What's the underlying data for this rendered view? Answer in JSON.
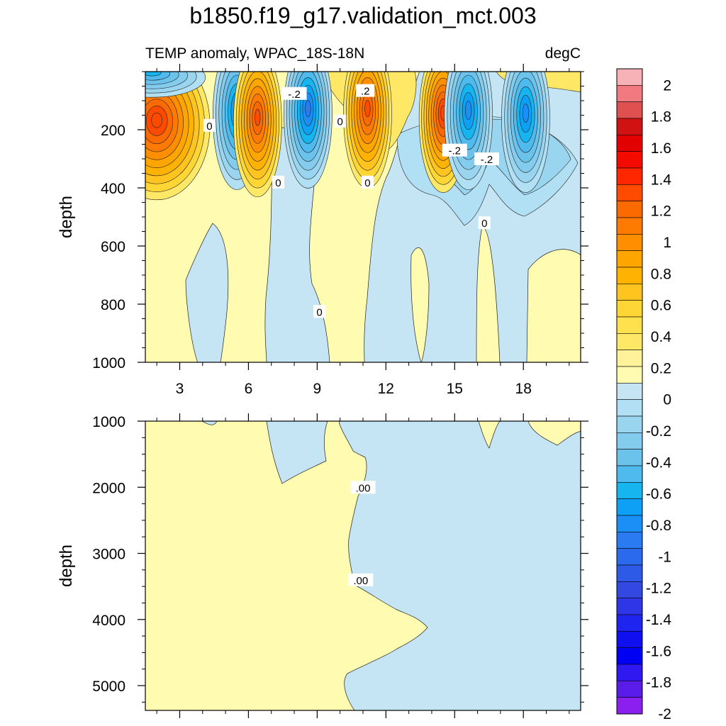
{
  "title": "b1850.f19_g17.validation_mct.003",
  "chart_data": [
    {
      "type": "contour",
      "panel": "upper",
      "left_string": "TEMP anomaly, WPAC_18S-18N",
      "right_string": "degC",
      "ylabel": "depth",
      "xlabel": "",
      "x_ticks": [
        3,
        6,
        9,
        12,
        15,
        18
      ],
      "x_range": [
        1.5,
        20.5
      ],
      "y_ticks": [
        200,
        400,
        600,
        800,
        1000
      ],
      "y_range": [
        0,
        1000
      ],
      "y_reversed": true,
      "contour_labels": [
        {
          "text": "0",
          "x": 4.3,
          "y": 185
        },
        {
          "text": "0",
          "x": 7.3,
          "y": 380
        },
        {
          "text": "0",
          "x": 10.0,
          "y": 170
        },
        {
          "text": "0",
          "x": 11.2,
          "y": 380
        },
        {
          "text": "0",
          "x": 9.1,
          "y": 825
        },
        {
          "text": "-.2",
          "x": 8.0,
          "y": 75
        },
        {
          "text": ".2",
          "x": 11.1,
          "y": 65
        },
        {
          "text": "-.2",
          "x": 15.0,
          "y": 270
        },
        {
          "text": "-.2",
          "x": 16.4,
          "y": 300
        },
        {
          "text": "0",
          "x": 16.3,
          "y": 520
        }
      ],
      "features": [
        {
          "sign": "positive",
          "peak": 1.0,
          "x": 2.0,
          "y": 185
        },
        {
          "sign": "negative",
          "peak": -0.6,
          "x": 1.8,
          "y": 20
        },
        {
          "sign": "negative",
          "peak": -0.8,
          "x": 5.5,
          "y": 150
        },
        {
          "sign": "positive",
          "peak": 0.9,
          "x": 6.4,
          "y": 175
        },
        {
          "sign": "negative",
          "peak": -0.9,
          "x": 8.6,
          "y": 145
        },
        {
          "sign": "positive",
          "peak": 0.9,
          "x": 11.2,
          "y": 145
        },
        {
          "sign": "positive",
          "peak": 1.0,
          "x": 14.5,
          "y": 160
        },
        {
          "sign": "negative",
          "peak": -0.8,
          "x": 15.6,
          "y": 150
        },
        {
          "sign": "negative",
          "peak": -0.8,
          "x": 18.1,
          "y": 160
        }
      ]
    },
    {
      "type": "contour",
      "panel": "lower",
      "ylabel": "depth",
      "xlabel": "",
      "x_ticks": [
        3,
        6,
        9,
        12,
        15,
        18
      ],
      "x_range": [
        1.5,
        20.5
      ],
      "y_ticks": [
        1000,
        2000,
        3000,
        4000,
        5000
      ],
      "y_range": [
        1000,
        5375
      ],
      "y_reversed": true,
      "contour_labels": [
        {
          "text": ".00",
          "x": 11.0,
          "y": 2000
        },
        {
          "text": ".00",
          "x": 10.9,
          "y": 3400
        }
      ]
    }
  ],
  "colorbar": {
    "labels": [
      "2",
      "1.8",
      "1.6",
      "1.4",
      "1.2",
      "1",
      "0.8",
      "0.6",
      "0.4",
      "0.2",
      "0",
      "-0.2",
      "-0.4",
      "-0.6",
      "-0.8",
      "-1",
      "-1.2",
      "-1.4",
      "-1.6",
      "-1.8",
      "-2"
    ],
    "colors": [
      "#f7b2b8",
      "#f07a80",
      "#e05050",
      "#d11212",
      "#e30000",
      "#f50a00",
      "#ff2600",
      "#ff4a00",
      "#fa6a00",
      "#ff7a00",
      "#ff8e00",
      "#ffa500",
      "#ffb200",
      "#ffc41f",
      "#ffd633",
      "#ffe04d",
      "#ffe866",
      "#fff29a",
      "#fffcb2",
      "#c5e5f5",
      "#b1dff3",
      "#9ad5f0",
      "#83ccee",
      "#6bc3ec",
      "#4fbaee",
      "#16b5f0",
      "#0da0f5",
      "#1a8ff5",
      "#2a7af2",
      "#2b6aed",
      "#2e5ae8",
      "#3248e0",
      "#2f36e8",
      "#1f25ee",
      "#0f0fef",
      "#0000f5",
      "#3018f0",
      "#5a1ce8",
      "#8a1ff0"
    ]
  },
  "colors": {
    "positive_light": "#fffcb2",
    "negative_light": "#c5e5f5"
  }
}
